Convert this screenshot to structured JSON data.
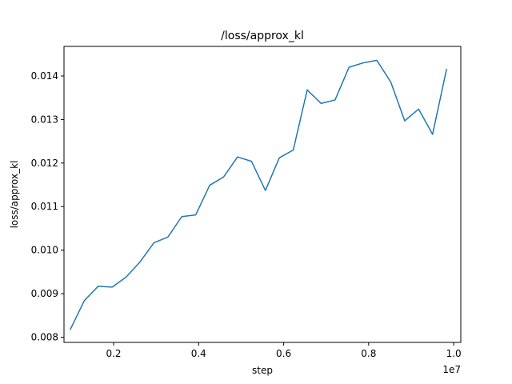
{
  "chart_data": {
    "type": "line",
    "title": "/loss/approx_kl",
    "xlabel": "step",
    "ylabel": "loss/approx_kl",
    "x_offset_label": "1e7",
    "xlim": [
      0.0833,
      1.0167
    ],
    "ylim": [
      0.00788,
      0.01468
    ],
    "x_ticks": [
      0.2,
      0.4,
      0.6,
      0.8,
      1.0
    ],
    "x_tick_labels": [
      "0.2",
      "0.4",
      "0.6",
      "0.8",
      "1.0"
    ],
    "y_ticks": [
      0.008,
      0.009,
      0.01,
      0.011,
      0.012,
      0.013,
      0.014
    ],
    "y_tick_labels": [
      "0.008",
      "0.009",
      "0.010",
      "0.011",
      "0.012",
      "0.013",
      "0.014"
    ],
    "grid": false,
    "line_color": "#1f77b4",
    "series": [
      {
        "x": [
          0.0983,
          0.1311,
          0.1638,
          0.1966,
          0.2294,
          0.2621,
          0.2949,
          0.3277,
          0.3604,
          0.3932,
          0.426,
          0.4588,
          0.4915,
          0.5243,
          0.5571,
          0.5898,
          0.6226,
          0.6554,
          0.6881,
          0.7209,
          0.7537,
          0.7864,
          0.8192,
          0.852,
          0.8847,
          0.9175,
          0.9503,
          0.983
        ],
        "y": [
          0.00818,
          0.00884,
          0.00917,
          0.00915,
          0.00938,
          0.00973,
          0.01017,
          0.0103,
          0.01077,
          0.01081,
          0.01149,
          0.01168,
          0.01214,
          0.01204,
          0.01137,
          0.01212,
          0.0123,
          0.01368,
          0.01337,
          0.01345,
          0.0142,
          0.0143,
          0.01436,
          0.01386,
          0.01297,
          0.01324,
          0.01266,
          0.01415
        ]
      }
    ]
  }
}
